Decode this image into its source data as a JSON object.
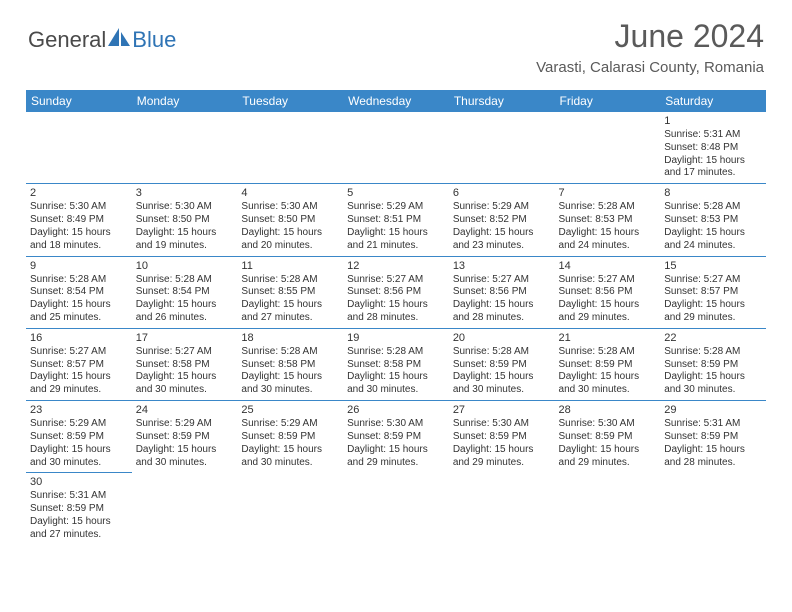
{
  "brand": {
    "text1": "General",
    "text2": "Blue",
    "color_general": "#4a4a4a",
    "color_blue": "#2f74b5",
    "sail_color": "#2f74b5"
  },
  "header": {
    "title": "June 2024",
    "location": "Varasti, Calarasi County, Romania",
    "title_color": "#5a5a5a",
    "title_fontsize": 32,
    "location_fontsize": 15
  },
  "colors": {
    "header_bg": "#3a87c8",
    "header_fg": "#ffffff",
    "cell_border": "#3a87c8",
    "text": "#333333",
    "background": "#ffffff"
  },
  "calendar": {
    "columns": [
      "Sunday",
      "Monday",
      "Tuesday",
      "Wednesday",
      "Thursday",
      "Friday",
      "Saturday"
    ],
    "cell_fontsize": 10,
    "header_fontsize": 12,
    "weeks": [
      [
        null,
        null,
        null,
        null,
        null,
        null,
        {
          "n": "1",
          "sr": "5:31 AM",
          "ss": "8:48 PM",
          "dl": "15 hours and 17 minutes."
        }
      ],
      [
        {
          "n": "2",
          "sr": "5:30 AM",
          "ss": "8:49 PM",
          "dl": "15 hours and 18 minutes."
        },
        {
          "n": "3",
          "sr": "5:30 AM",
          "ss": "8:50 PM",
          "dl": "15 hours and 19 minutes."
        },
        {
          "n": "4",
          "sr": "5:30 AM",
          "ss": "8:50 PM",
          "dl": "15 hours and 20 minutes."
        },
        {
          "n": "5",
          "sr": "5:29 AM",
          "ss": "8:51 PM",
          "dl": "15 hours and 21 minutes."
        },
        {
          "n": "6",
          "sr": "5:29 AM",
          "ss": "8:52 PM",
          "dl": "15 hours and 23 minutes."
        },
        {
          "n": "7",
          "sr": "5:28 AM",
          "ss": "8:53 PM",
          "dl": "15 hours and 24 minutes."
        },
        {
          "n": "8",
          "sr": "5:28 AM",
          "ss": "8:53 PM",
          "dl": "15 hours and 24 minutes."
        }
      ],
      [
        {
          "n": "9",
          "sr": "5:28 AM",
          "ss": "8:54 PM",
          "dl": "15 hours and 25 minutes."
        },
        {
          "n": "10",
          "sr": "5:28 AM",
          "ss": "8:54 PM",
          "dl": "15 hours and 26 minutes."
        },
        {
          "n": "11",
          "sr": "5:28 AM",
          "ss": "8:55 PM",
          "dl": "15 hours and 27 minutes."
        },
        {
          "n": "12",
          "sr": "5:27 AM",
          "ss": "8:56 PM",
          "dl": "15 hours and 28 minutes."
        },
        {
          "n": "13",
          "sr": "5:27 AM",
          "ss": "8:56 PM",
          "dl": "15 hours and 28 minutes."
        },
        {
          "n": "14",
          "sr": "5:27 AM",
          "ss": "8:56 PM",
          "dl": "15 hours and 29 minutes."
        },
        {
          "n": "15",
          "sr": "5:27 AM",
          "ss": "8:57 PM",
          "dl": "15 hours and 29 minutes."
        }
      ],
      [
        {
          "n": "16",
          "sr": "5:27 AM",
          "ss": "8:57 PM",
          "dl": "15 hours and 29 minutes."
        },
        {
          "n": "17",
          "sr": "5:27 AM",
          "ss": "8:58 PM",
          "dl": "15 hours and 30 minutes."
        },
        {
          "n": "18",
          "sr": "5:28 AM",
          "ss": "8:58 PM",
          "dl": "15 hours and 30 minutes."
        },
        {
          "n": "19",
          "sr": "5:28 AM",
          "ss": "8:58 PM",
          "dl": "15 hours and 30 minutes."
        },
        {
          "n": "20",
          "sr": "5:28 AM",
          "ss": "8:59 PM",
          "dl": "15 hours and 30 minutes."
        },
        {
          "n": "21",
          "sr": "5:28 AM",
          "ss": "8:59 PM",
          "dl": "15 hours and 30 minutes."
        },
        {
          "n": "22",
          "sr": "5:28 AM",
          "ss": "8:59 PM",
          "dl": "15 hours and 30 minutes."
        }
      ],
      [
        {
          "n": "23",
          "sr": "5:29 AM",
          "ss": "8:59 PM",
          "dl": "15 hours and 30 minutes."
        },
        {
          "n": "24",
          "sr": "5:29 AM",
          "ss": "8:59 PM",
          "dl": "15 hours and 30 minutes."
        },
        {
          "n": "25",
          "sr": "5:29 AM",
          "ss": "8:59 PM",
          "dl": "15 hours and 30 minutes."
        },
        {
          "n": "26",
          "sr": "5:30 AM",
          "ss": "8:59 PM",
          "dl": "15 hours and 29 minutes."
        },
        {
          "n": "27",
          "sr": "5:30 AM",
          "ss": "8:59 PM",
          "dl": "15 hours and 29 minutes."
        },
        {
          "n": "28",
          "sr": "5:30 AM",
          "ss": "8:59 PM",
          "dl": "15 hours and 29 minutes."
        },
        {
          "n": "29",
          "sr": "5:31 AM",
          "ss": "8:59 PM",
          "dl": "15 hours and 28 minutes."
        }
      ],
      [
        {
          "n": "30",
          "sr": "5:31 AM",
          "ss": "8:59 PM",
          "dl": "15 hours and 27 minutes."
        },
        null,
        null,
        null,
        null,
        null,
        null
      ]
    ],
    "labels": {
      "sunrise_prefix": "Sunrise: ",
      "sunset_prefix": "Sunset: ",
      "daylight_prefix": "Daylight: "
    }
  }
}
